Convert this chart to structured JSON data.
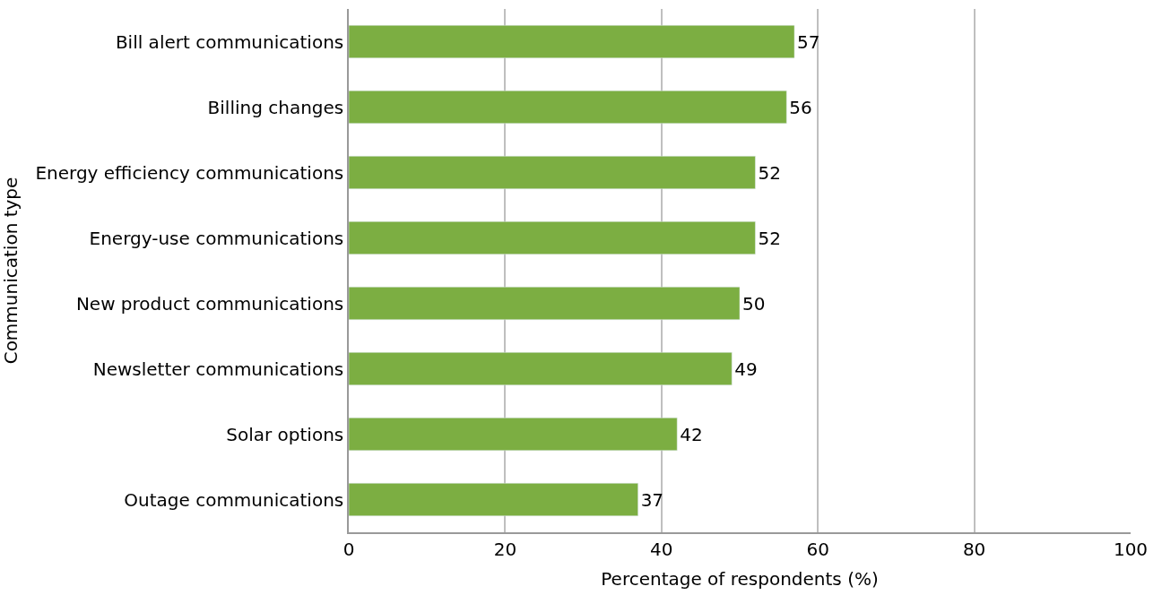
{
  "chart_data": {
    "type": "bar",
    "orientation": "horizontal",
    "xlabel": "Percentage of respondents (%)",
    "ylabel": "Communication type",
    "categories": [
      "Bill alert communications",
      "Billing changes",
      "Energy efficiency communications",
      "Energy-use communications",
      "New product communications",
      "Newsletter communications",
      "Solar options",
      "Outage communications"
    ],
    "values": [
      57,
      56,
      52,
      52,
      50,
      49,
      42,
      37
    ],
    "color": "#7cae42",
    "xlim": [
      0,
      100
    ],
    "xticks": [
      0,
      20,
      40,
      60,
      80,
      100
    ],
    "grid": "x",
    "data_labels": true
  }
}
